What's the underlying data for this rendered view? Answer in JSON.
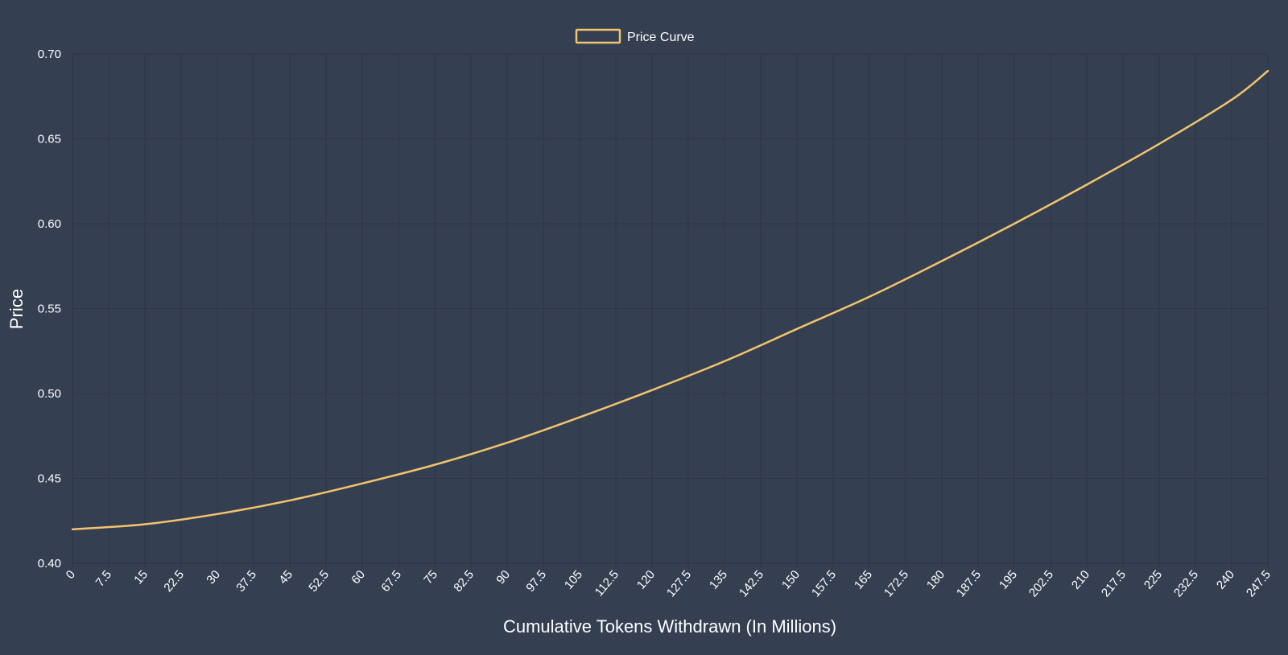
{
  "colors": {
    "background": "#343f51",
    "grid": "#2c3544",
    "series": "#f2c46d",
    "text": "#ffffff"
  },
  "chart_data": {
    "type": "line",
    "xlabel": "Cumulative Tokens Withdrawn (In Millions)",
    "ylabel": "Price",
    "xlim": [
      0,
      247.5
    ],
    "ylim": [
      0.4,
      0.7
    ],
    "grid": true,
    "legend_position": "top-center",
    "x_ticks": [
      "0",
      "7.5",
      "15",
      "22.5",
      "30",
      "37.5",
      "45",
      "52.5",
      "60",
      "67.5",
      "75",
      "82.5",
      "90",
      "97.5",
      "105",
      "112.5",
      "120",
      "127.5",
      "135",
      "142.5",
      "150",
      "157.5",
      "165",
      "172.5",
      "180",
      "187.5",
      "195",
      "202.5",
      "210",
      "217.5",
      "225",
      "232.5",
      "240",
      "247.5"
    ],
    "y_ticks": [
      "0.40",
      "0.45",
      "0.50",
      "0.55",
      "0.60",
      "0.65",
      "0.70"
    ],
    "series": [
      {
        "name": "Price Curve",
        "color": "#f2c46d",
        "x": [
          0,
          15,
          30,
          45,
          60,
          75,
          90,
          105,
          120,
          135,
          150,
          165,
          180,
          195,
          210,
          225,
          240,
          247.5
        ],
        "y": [
          0.42,
          0.423,
          0.429,
          0.437,
          0.447,
          0.458,
          0.471,
          0.486,
          0.502,
          0.519,
          0.538,
          0.557,
          0.578,
          0.6,
          0.623,
          0.647,
          0.673,
          0.69
        ]
      }
    ]
  }
}
